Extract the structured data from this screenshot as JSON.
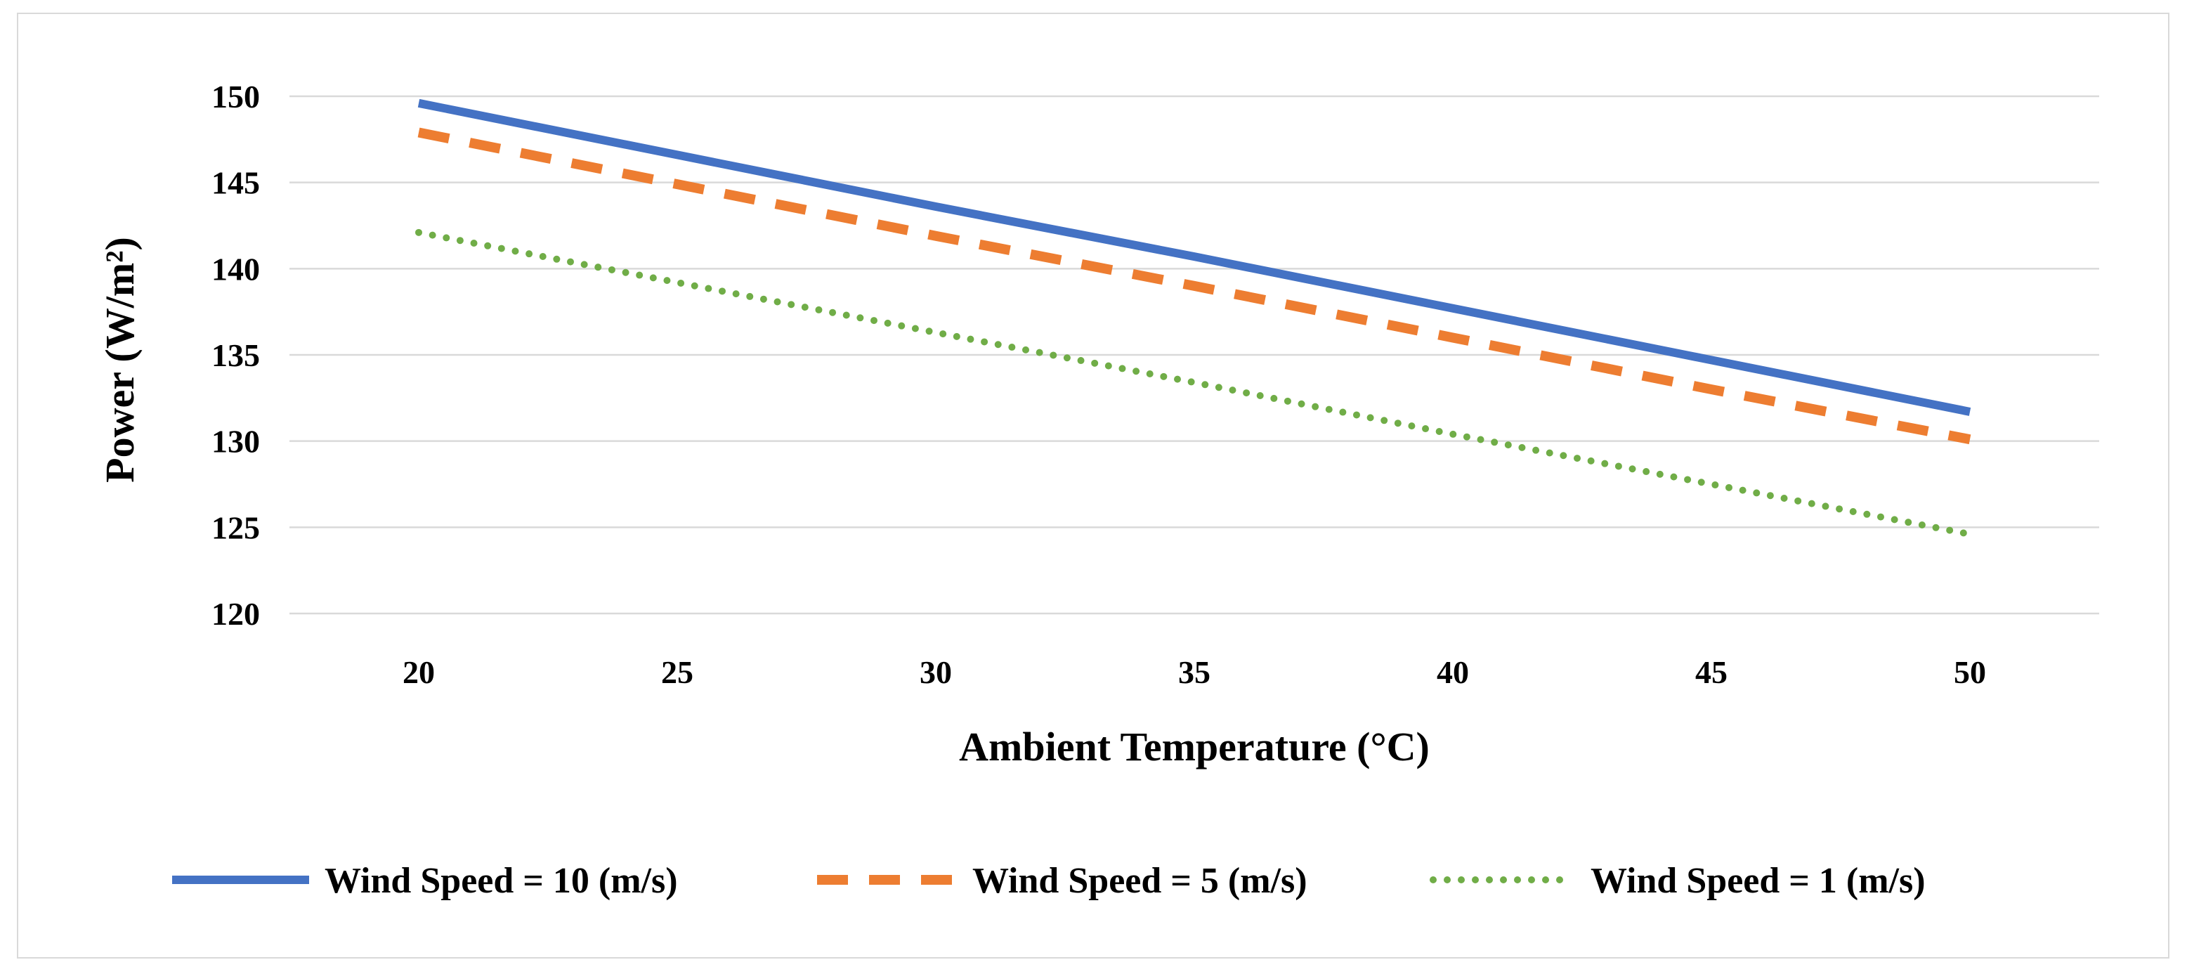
{
  "chart_data": {
    "type": "line",
    "title": "",
    "xlabel": "Ambient Temperature (°C)",
    "ylabel": "Power (W/m²)",
    "x": [
      20,
      25,
      30,
      35,
      40,
      45,
      50
    ],
    "xticks": [
      "20",
      "25",
      "30",
      "35",
      "40",
      "45",
      "50"
    ],
    "yticks": [
      "120",
      "125",
      "130",
      "135",
      "140",
      "145",
      "150"
    ],
    "ylim": [
      120,
      150
    ],
    "xlim": [
      17.5,
      52.5
    ],
    "grid": "horizontal",
    "legend_position": "bottom",
    "series": [
      {
        "name": "Wind Speed = 10 (m/s)",
        "color": "#4472C4",
        "style": "solid",
        "values": [
          149.6,
          146.6,
          143.6,
          140.7,
          137.7,
          134.7,
          131.7
        ]
      },
      {
        "name": "Wind Speed = 5 (m/s)",
        "color": "#ED7D31",
        "style": "dashed",
        "values": [
          147.9,
          144.9,
          141.9,
          139.0,
          136.0,
          133.0,
          130.1
        ]
      },
      {
        "name": "Wind Speed = 1 (m/s)",
        "color": "#70AD47",
        "style": "dotted",
        "values": [
          142.1,
          139.2,
          136.3,
          133.4,
          130.4,
          127.5,
          124.6
        ]
      }
    ]
  }
}
